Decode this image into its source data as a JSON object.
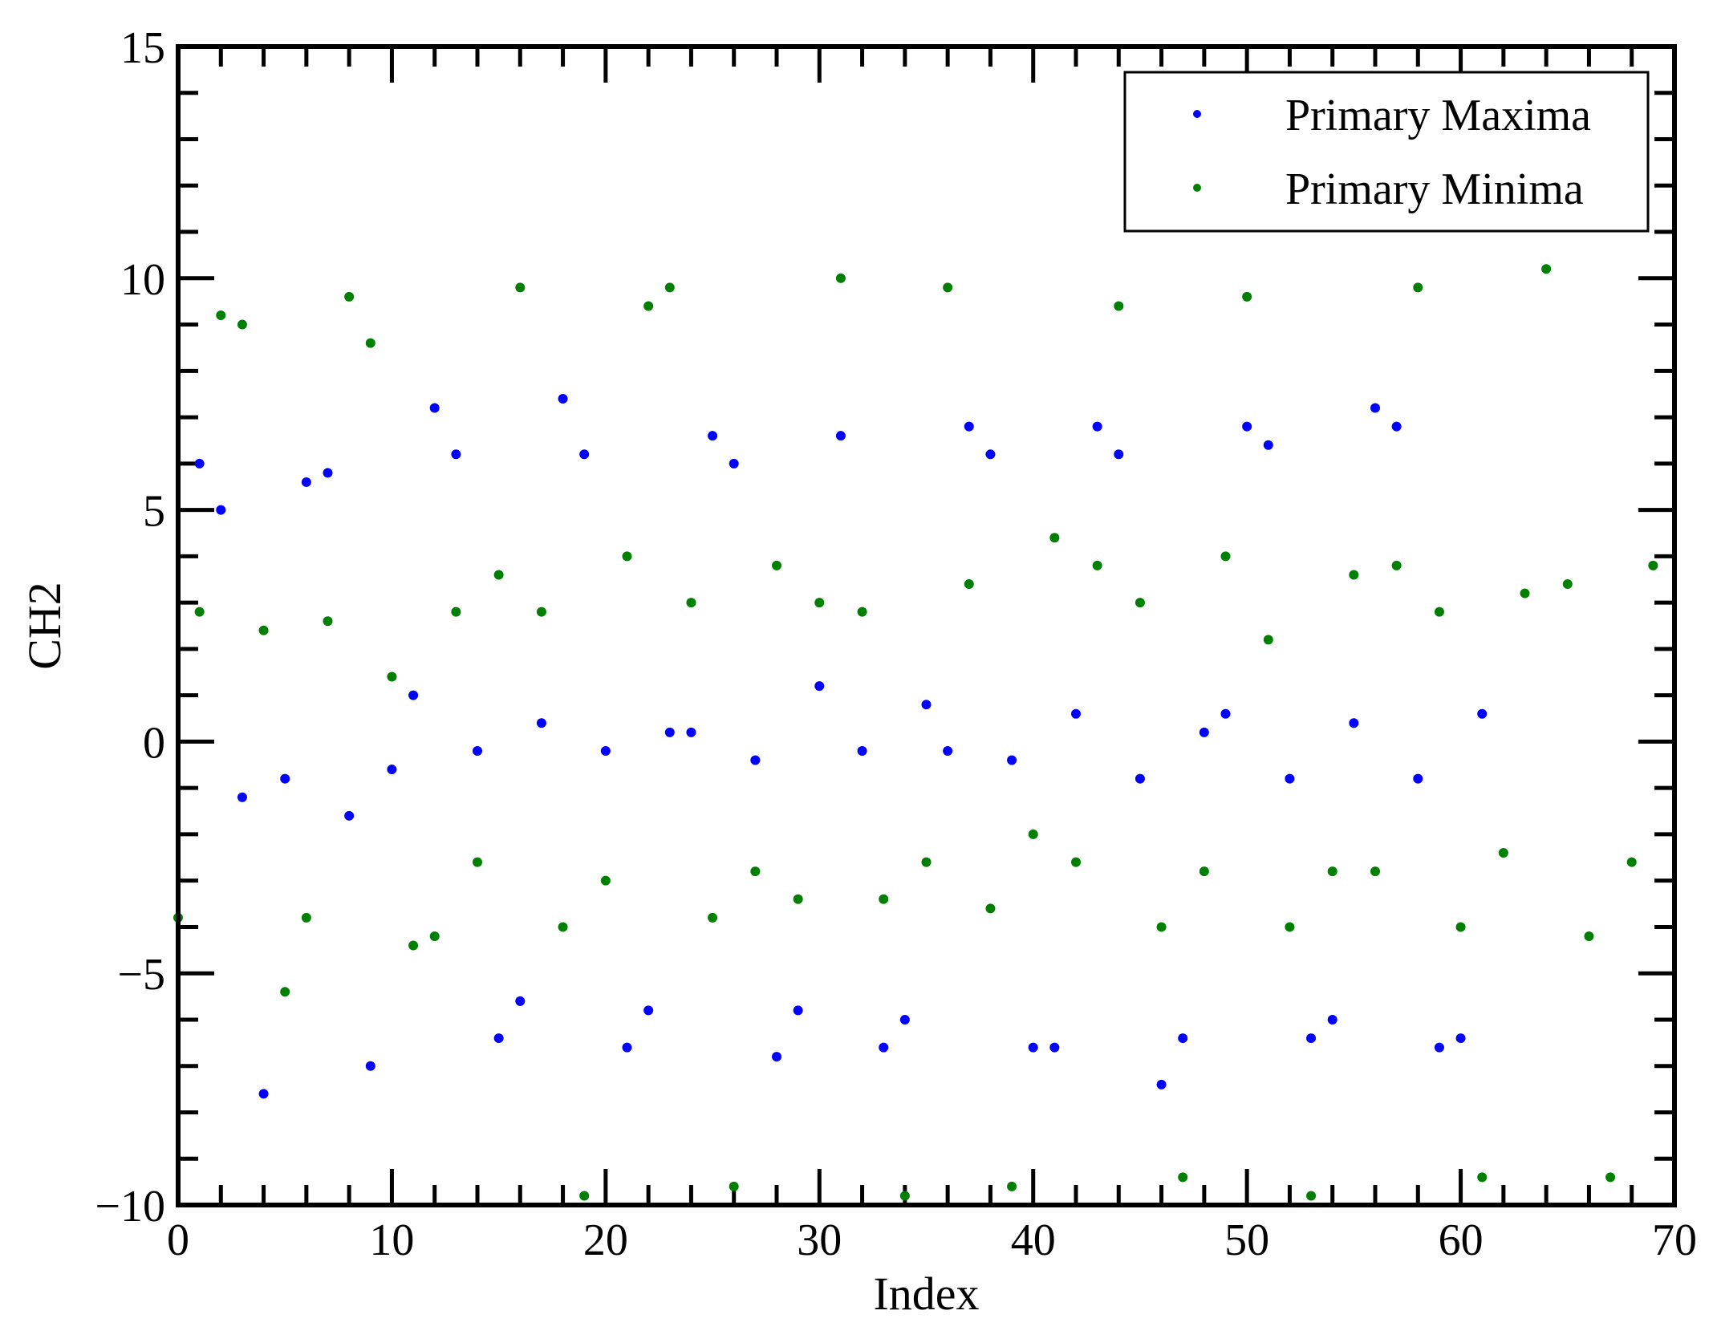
{
  "chart_data": {
    "type": "scatter",
    "title": "",
    "xlabel": "Index",
    "ylabel": "CH2",
    "xlim": [
      0,
      70
    ],
    "ylim": [
      -10,
      15
    ],
    "xticks": [
      0,
      10,
      20,
      30,
      40,
      50,
      60,
      70
    ],
    "yticks": [
      -10,
      -5,
      0,
      5,
      10,
      15
    ],
    "xtick_labels": [
      "0",
      "10",
      "20",
      "30",
      "40",
      "50",
      "60",
      "70"
    ],
    "ytick_labels": [
      "−10",
      "−5",
      "0",
      "5",
      "10",
      "15"
    ],
    "grid": false,
    "legend_position": "top-right",
    "series": [
      {
        "name": "Primary Maxima",
        "color": "#0000ff",
        "x": [
          1,
          2,
          3,
          4,
          5,
          6,
          7,
          8,
          9,
          10,
          11,
          12,
          13,
          14,
          15,
          16,
          17,
          18,
          19,
          20,
          21,
          22,
          23,
          24,
          25,
          26,
          27,
          28,
          29,
          30,
          31,
          32,
          33,
          34,
          35,
          36,
          37,
          38,
          39,
          40,
          41,
          42,
          43,
          44,
          45,
          46,
          47,
          48,
          49,
          50,
          51,
          52,
          53,
          54,
          55,
          56,
          57,
          58,
          59,
          60,
          61
        ],
        "y": [
          6.0,
          5.0,
          -1.2,
          -7.6,
          -0.8,
          5.6,
          5.8,
          -1.6,
          -7.0,
          -0.6,
          1.0,
          7.2,
          6.2,
          -0.2,
          -6.4,
          -5.6,
          0.4,
          7.4,
          6.2,
          -0.2,
          -6.6,
          -5.8,
          0.2,
          0.2,
          6.6,
          6.0,
          -0.4,
          -6.8,
          -5.8,
          1.2,
          6.6,
          -0.2,
          -6.6,
          -6.0,
          0.8,
          -0.2,
          6.8,
          6.2,
          -0.4,
          -6.6,
          -6.6,
          0.6,
          6.8,
          6.2,
          -0.8,
          -7.4,
          -6.4,
          0.2,
          0.6,
          6.8,
          6.4,
          -0.8,
          -6.4,
          -6.0,
          0.4,
          7.2,
          6.8,
          -0.8,
          -6.6,
          -6.4,
          0.6
        ]
      },
      {
        "name": "Primary Minima",
        "color": "#008000",
        "x": [
          0,
          1,
          2,
          3,
          4,
          5,
          6,
          7,
          8,
          9,
          10,
          11,
          12,
          13,
          14,
          15,
          16,
          17,
          18,
          19,
          20,
          21,
          22,
          23,
          24,
          25,
          26,
          27,
          28,
          29,
          30,
          31,
          32,
          33,
          34,
          35,
          36,
          37,
          38,
          39,
          40,
          41,
          42,
          43,
          44,
          45,
          46,
          47,
          48,
          49,
          50,
          51,
          52,
          53,
          54,
          55,
          56,
          57,
          58,
          59,
          60,
          61,
          62,
          63,
          64,
          65,
          66,
          67,
          68,
          69
        ],
        "y": [
          -3.8,
          2.8,
          9.2,
          9.0,
          2.4,
          -5.4,
          -3.8,
          2.6,
          9.6,
          8.6,
          1.4,
          -4.4,
          -4.2,
          2.8,
          -2.6,
          3.6,
          9.8,
          2.8,
          -4.0,
          -9.8,
          -3.0,
          4.0,
          9.4,
          9.8,
          3.0,
          -3.8,
          -9.6,
          -2.8,
          3.8,
          -3.4,
          3.0,
          10.0,
          2.8,
          -3.4,
          -9.8,
          -2.6,
          9.8,
          3.4,
          -3.6,
          -9.6,
          -2.0,
          4.4,
          -2.6,
          3.8,
          9.4,
          3.0,
          -4.0,
          -9.4,
          -2.8,
          4.0,
          9.6,
          2.2,
          -4.0,
          -9.8,
          -2.8,
          3.6,
          -2.8,
          3.8,
          9.8,
          2.8,
          -4.0,
          -9.4,
          -2.4,
          3.2,
          10.2,
          3.4,
          -4.2,
          -9.4,
          -2.6,
          3.8
        ]
      }
    ]
  }
}
